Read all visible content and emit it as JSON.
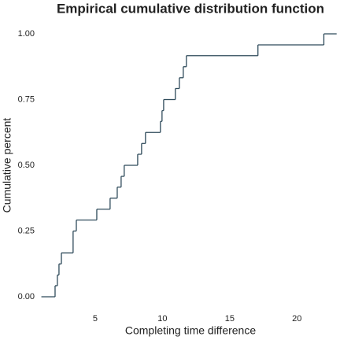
{
  "chart_data": {
    "type": "step",
    "title": "Empirical cumulative distribution function",
    "x_label": "Completing time difference",
    "y_label": "Cumulative percent",
    "color": "#2e4a5a",
    "x": [
      1.0,
      2.02,
      2.19,
      2.31,
      2.49,
      3.36,
      3.6,
      5.12,
      6.11,
      6.64,
      6.93,
      7.16,
      8.16,
      8.45,
      8.74,
      9.85,
      9.97,
      10.09,
      10.96,
      11.26,
      11.55,
      11.78,
      17.1,
      22.0,
      22.95
    ],
    "values": [
      0.0,
      0.042,
      0.083,
      0.125,
      0.167,
      0.25,
      0.292,
      0.333,
      0.375,
      0.417,
      0.458,
      0.5,
      0.542,
      0.583,
      0.625,
      0.667,
      0.708,
      0.75,
      0.792,
      0.833,
      0.875,
      0.917,
      0.958,
      1.0,
      1.0
    ],
    "xlim": [
      0.5,
      23.2
    ],
    "ylim": [
      -0.05,
      1.05
    ],
    "xticks": [
      5,
      10,
      15,
      20
    ],
    "yticks": [
      {
        "value": 0,
        "label": "0.00"
      },
      {
        "value": 0.25,
        "label": "0.25"
      },
      {
        "value": 0.5,
        "label": "0.50"
      },
      {
        "value": 0.75,
        "label": "0.75"
      },
      {
        "value": 1,
        "label": "1.00"
      }
    ]
  }
}
